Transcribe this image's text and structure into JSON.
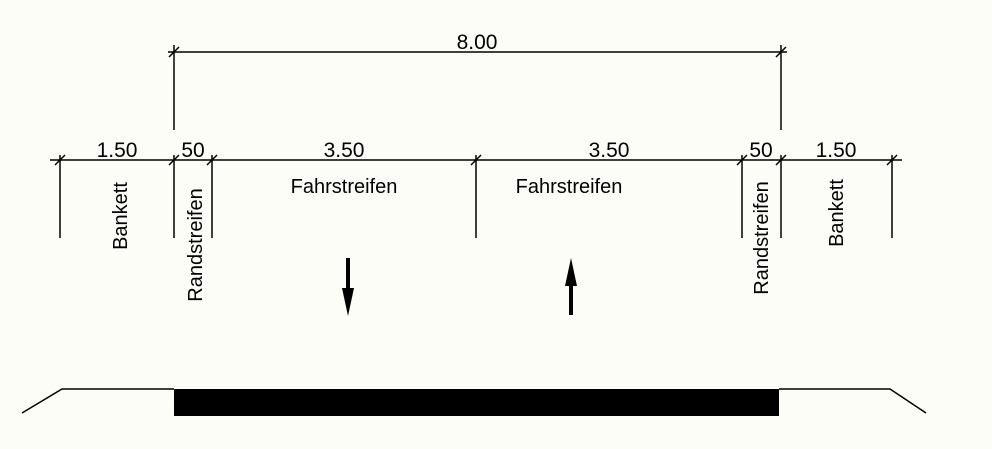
{
  "dimensions": {
    "total": "8.00",
    "segments": [
      "1.50",
      "50",
      "3.50",
      "3.50",
      "50",
      "1.50"
    ]
  },
  "labels": [
    "Bankett",
    "Randstreifen",
    "Fahrstreifen",
    "Fahrstreifen",
    "Randstreifen",
    "Bankett"
  ]
}
